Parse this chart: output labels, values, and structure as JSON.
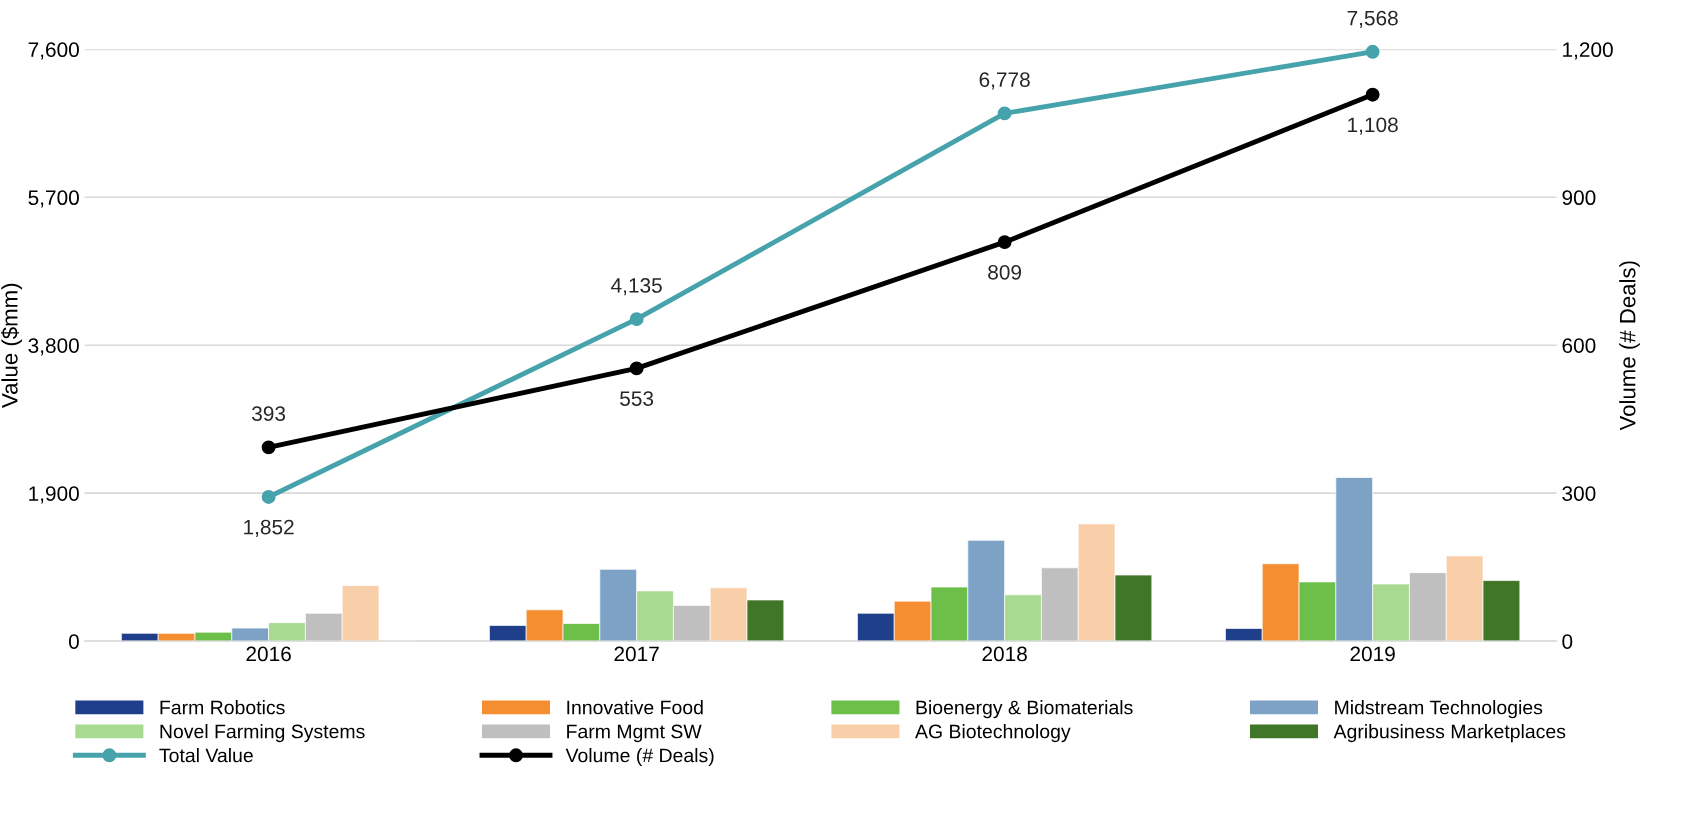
{
  "chart_data": {
    "type": "bar",
    "ylabel": "Value ($mm)",
    "y2label": "Volume (# Deals)",
    "categories": [
      "2016",
      "2017",
      "2018",
      "2019"
    ],
    "ylim": [
      0,
      7600
    ],
    "yticks": [
      {
        "value": 0,
        "label": "0"
      },
      {
        "value": 1900,
        "label": "1,900"
      },
      {
        "value": 3800,
        "label": "3,800"
      },
      {
        "value": 5700,
        "label": "5,700"
      },
      {
        "value": 7600,
        "label": "7,600"
      }
    ],
    "y2lim": [
      0,
      1200
    ],
    "y2ticks": [
      {
        "value": 0,
        "label": "0"
      },
      {
        "value": 300,
        "label": "300"
      },
      {
        "value": 600,
        "label": "600"
      },
      {
        "value": 900,
        "label": "900"
      },
      {
        "value": 1200,
        "label": "1,200"
      }
    ],
    "grid": "y",
    "legend": "bottom",
    "marker": "circle",
    "series": [
      {
        "name": "Farm Robotics",
        "color": "#1f3f8a",
        "values": [
          100,
          202,
          358,
          163
        ]
      },
      {
        "name": "Innovative Food",
        "color": "#f58e30",
        "values": [
          100,
          403,
          514,
          994
        ]
      },
      {
        "name": "Bioenergy & Biomaterials",
        "color": "#6cc04a",
        "values": [
          115,
          227,
          695,
          761
        ]
      },
      {
        "name": "Midstream Technologies",
        "color": "#7da2c6",
        "values": [
          168,
          922,
          1295,
          2102
        ]
      },
      {
        "name": "Novel Farming Systems",
        "color": "#a8da92",
        "values": [
          238,
          645,
          595,
          734
        ]
      },
      {
        "name": "Farm Mgmt SW",
        "color": "#bfbfbf",
        "values": [
          357,
          459,
          942,
          880
        ]
      },
      {
        "name": "AG Biotechnology",
        "color": "#f9cfa9",
        "values": [
          714,
          685,
          1506,
          1095
        ]
      },
      {
        "name": "Agribusiness Marketplaces",
        "color": "#407628",
        "values": [
          null,
          529,
          849,
          778
        ]
      },
      {
        "name": "Total Value",
        "type": "line",
        "color": "#46a2ab",
        "values": [
          1852,
          4135,
          6778,
          7568
        ],
        "value_labels": [
          "1,852",
          "4,135",
          "6,778",
          "7,568"
        ]
      },
      {
        "name": "Volume (# Deals)",
        "type": "line",
        "axis": "y2",
        "color": "#000000",
        "values": [
          393,
          553,
          809,
          1108
        ],
        "value_labels": [
          "393",
          "553",
          "809",
          "1,108"
        ]
      }
    ]
  }
}
